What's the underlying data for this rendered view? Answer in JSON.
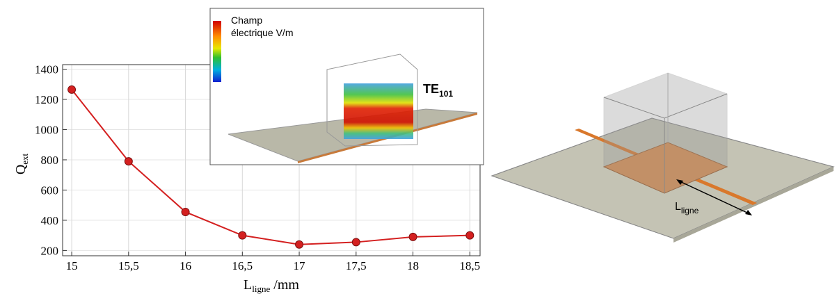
{
  "chart_data": {
    "type": "line",
    "xlabel": "L",
    "xlabel_sub": "ligne",
    "xlabel_unit": " /mm",
    "ylabel": "Q",
    "ylabel_sub": "ext",
    "x": [
      15,
      15.5,
      16,
      16.5,
      17,
      17.5,
      18,
      18.5
    ],
    "series": [
      {
        "name": "Qext",
        "color": "#d42020",
        "values": [
          1265,
          790,
          455,
          300,
          240,
          255,
          290,
          300
        ]
      }
    ],
    "xlim": [
      14.92,
      18.59
    ],
    "xticks": [
      15,
      {
        "value": 15.5,
        "label": "15,5"
      },
      16,
      {
        "value": 16.5,
        "label": "16,5"
      },
      17,
      {
        "value": 17.5,
        "label": "17,5"
      },
      18,
      {
        "value": 18.5,
        "label": "18,5"
      }
    ],
    "ylim": [
      165,
      1430
    ],
    "yticks": [
      200,
      400,
      600,
      800,
      1000,
      1200,
      1400
    ],
    "grid": true
  },
  "inset": {
    "title_lines": [
      "Champ",
      "électrique V/m"
    ],
    "mode": "TE",
    "mode_sub": "101"
  },
  "figure": {
    "label": "L",
    "label_sub": "ligne"
  }
}
